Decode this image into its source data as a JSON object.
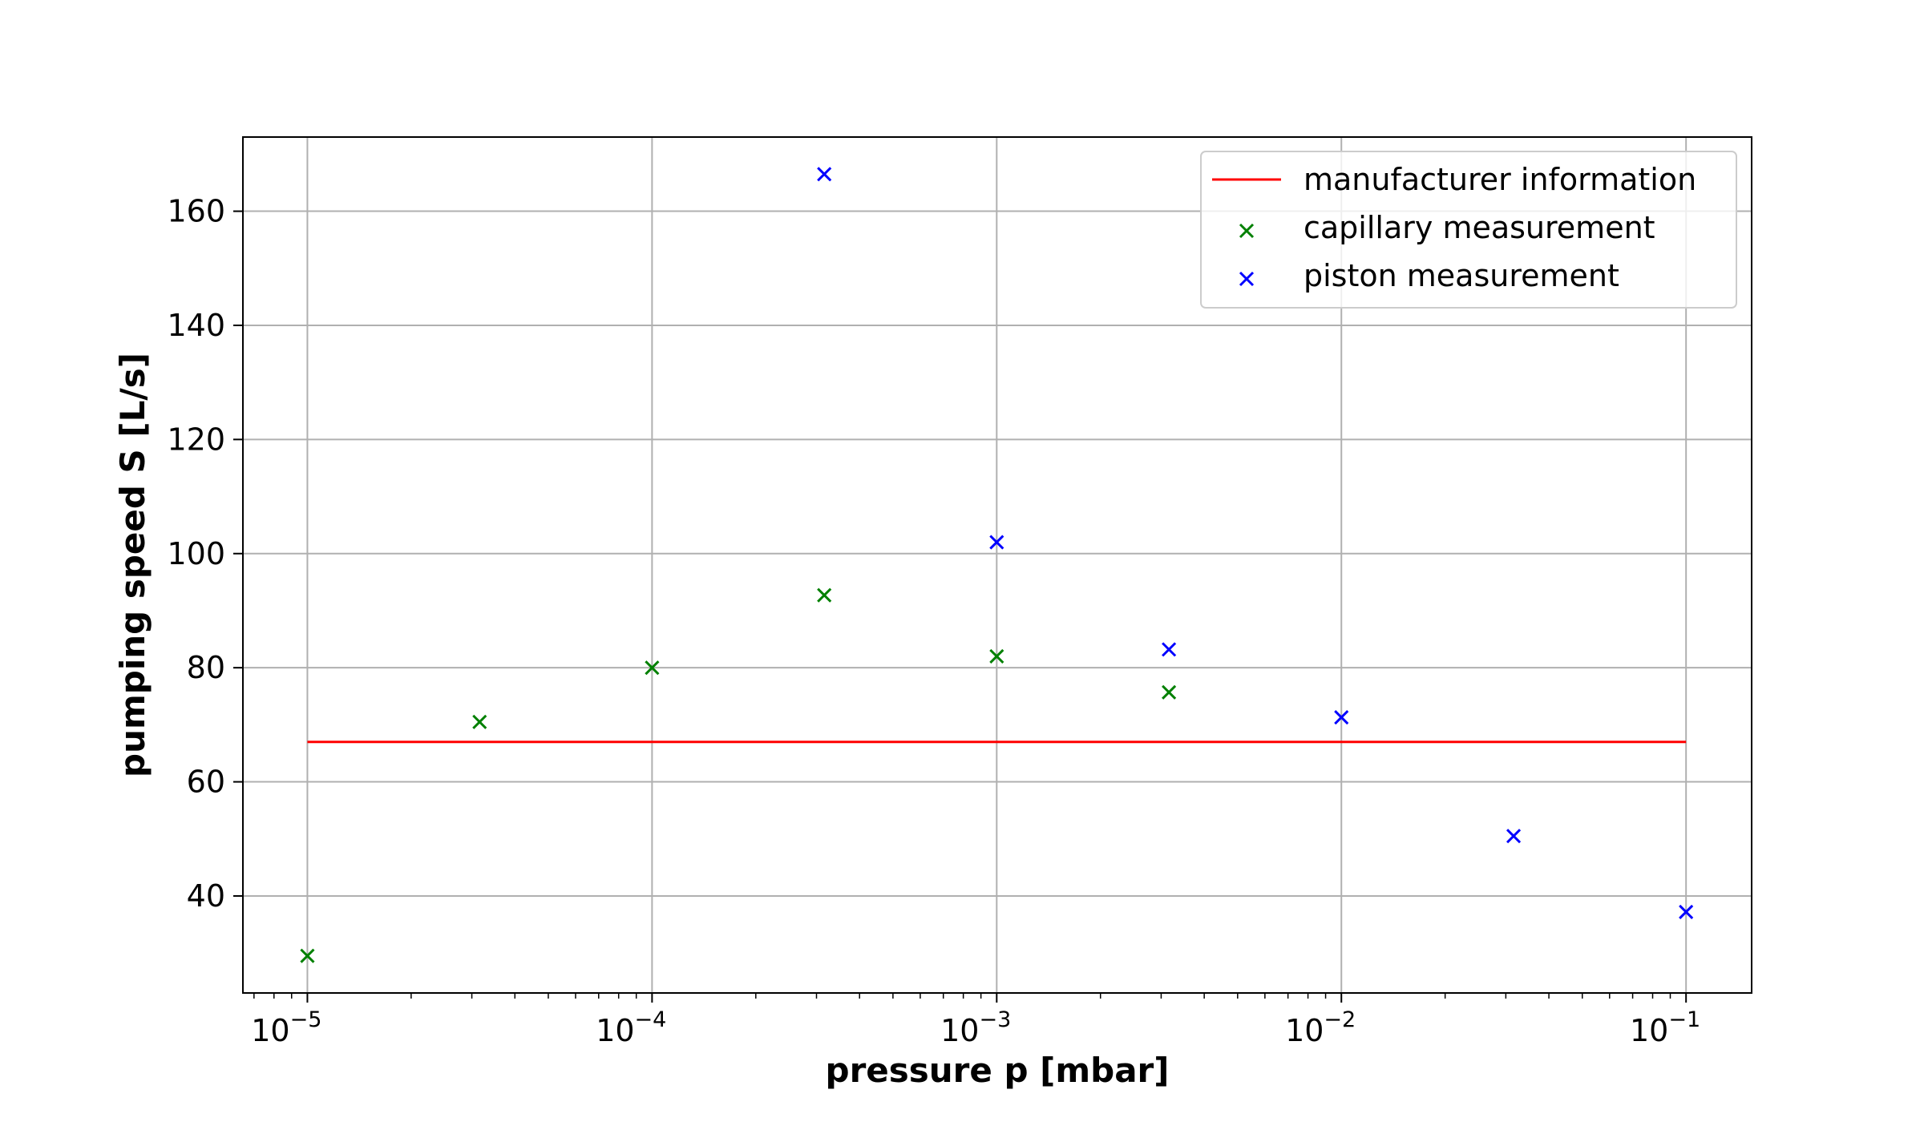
{
  "chart_data": {
    "type": "scatter",
    "title": "",
    "xlabel": "pressure p [mbar]",
    "ylabel": "pumping speed S [L/s]",
    "xscale": "log",
    "xlim": [
      6.5e-06,
      0.155
    ],
    "ylim": [
      23,
      173
    ],
    "x_ticks": [
      {
        "value": 1e-05,
        "base": "10",
        "exp": "−5"
      },
      {
        "value": 0.0001,
        "base": "10",
        "exp": "−4"
      },
      {
        "value": 0.001,
        "base": "10",
        "exp": "−3"
      },
      {
        "value": 0.01,
        "base": "10",
        "exp": "−2"
      },
      {
        "value": 0.1,
        "base": "10",
        "exp": "−1"
      }
    ],
    "y_ticks": [
      {
        "value": 40,
        "label": "40"
      },
      {
        "value": 60,
        "label": "60"
      },
      {
        "value": 80,
        "label": "80"
      },
      {
        "value": 100,
        "label": "100"
      },
      {
        "value": 120,
        "label": "120"
      },
      {
        "value": 140,
        "label": "140"
      },
      {
        "value": 160,
        "label": "160"
      }
    ],
    "grid": true,
    "legend_position": "top-right",
    "series": [
      {
        "name": "manufacturer information",
        "kind": "line",
        "color": "#ff0000",
        "points": [
          [
            1e-05,
            67
          ],
          [
            0.1,
            67
          ]
        ]
      },
      {
        "name": "capillary measurement",
        "kind": "marker-x",
        "color": "#008000",
        "points": [
          [
            1e-05,
            29.5
          ],
          [
            3.16e-05,
            70.5
          ],
          [
            0.0001,
            80
          ],
          [
            0.000316,
            92.7
          ],
          [
            0.001,
            82
          ],
          [
            0.00316,
            75.7
          ]
        ]
      },
      {
        "name": "piston measurement",
        "kind": "marker-x",
        "color": "#0000ff",
        "points": [
          [
            0.000316,
            166.5
          ],
          [
            0.001,
            102
          ],
          [
            0.00316,
            83.2
          ],
          [
            0.01,
            71.3
          ],
          [
            0.0316,
            50.5
          ],
          [
            0.1,
            37.2
          ]
        ]
      }
    ]
  }
}
